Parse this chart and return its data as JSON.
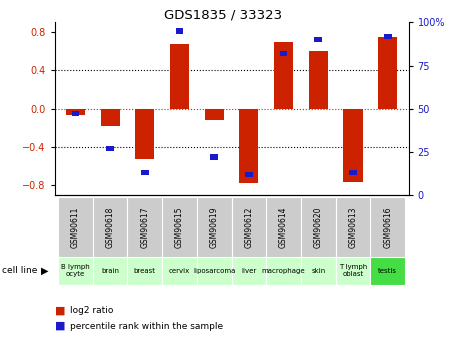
{
  "title": "GDS1835 / 33323",
  "samples": [
    "GSM90611",
    "GSM90618",
    "GSM90617",
    "GSM90615",
    "GSM90619",
    "GSM90612",
    "GSM90614",
    "GSM90620",
    "GSM90613",
    "GSM90616"
  ],
  "cell_lines": [
    "B lymph\nocyte",
    "brain",
    "breast",
    "cervix",
    "liposarcoma\n",
    "liver",
    "macrophage\n",
    "skin",
    "T lymph\noblast",
    "testis"
  ],
  "cell_lines_display": [
    "B lymph\nocyte",
    "brain",
    "breast",
    "cervix",
    "liposarcoma",
    "liver",
    "macrophage",
    "skin",
    "T lymph\noblast",
    "testis"
  ],
  "log2_ratio": [
    -0.07,
    -0.18,
    -0.52,
    0.68,
    -0.12,
    -0.78,
    0.7,
    0.6,
    -0.77,
    0.75
  ],
  "pct_rank": [
    47,
    27,
    13,
    95,
    22,
    12,
    82,
    90,
    13,
    92
  ],
  "ylim": [
    -0.9,
    0.9
  ],
  "y2lim": [
    0,
    100
  ],
  "yticks": [
    -0.8,
    -0.4,
    0.0,
    0.4,
    0.8
  ],
  "y2ticks": [
    0,
    25,
    50,
    75,
    100
  ],
  "y2ticklabels": [
    "0",
    "25",
    "50",
    "75",
    "100%"
  ],
  "red_color": "#cc2200",
  "blue_color": "#1a1acc",
  "grid_color": "#333333",
  "cell_line_colors": [
    "#ccffcc",
    "#ccffcc",
    "#ccffcc",
    "#ccffcc",
    "#ccffcc",
    "#ccffcc",
    "#ccffcc",
    "#ccffcc",
    "#ccffcc",
    "#44dd44"
  ],
  "gsm_bg_color": "#cccccc",
  "zero_line_color": "#cc2200"
}
